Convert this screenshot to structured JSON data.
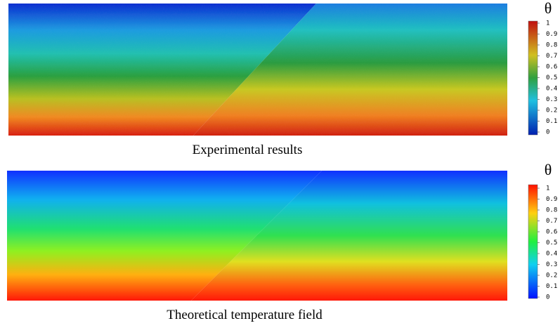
{
  "panels": [
    {
      "caption": "Experimental results",
      "colorbar": {
        "label": "θ",
        "lim": [
          0,
          1
        ],
        "ticks": [
          0,
          0.1,
          0.2,
          0.3,
          0.4,
          0.5,
          0.6,
          0.7,
          0.8,
          0.9,
          1
        ]
      }
    },
    {
      "caption": "Theoretical temperature field",
      "colorbar": {
        "label": "θ",
        "lim": [
          0,
          1
        ],
        "ticks": [
          0,
          0.1,
          0.2,
          0.3,
          0.4,
          0.5,
          0.6,
          0.7,
          0.8,
          0.9,
          1
        ]
      }
    }
  ]
}
